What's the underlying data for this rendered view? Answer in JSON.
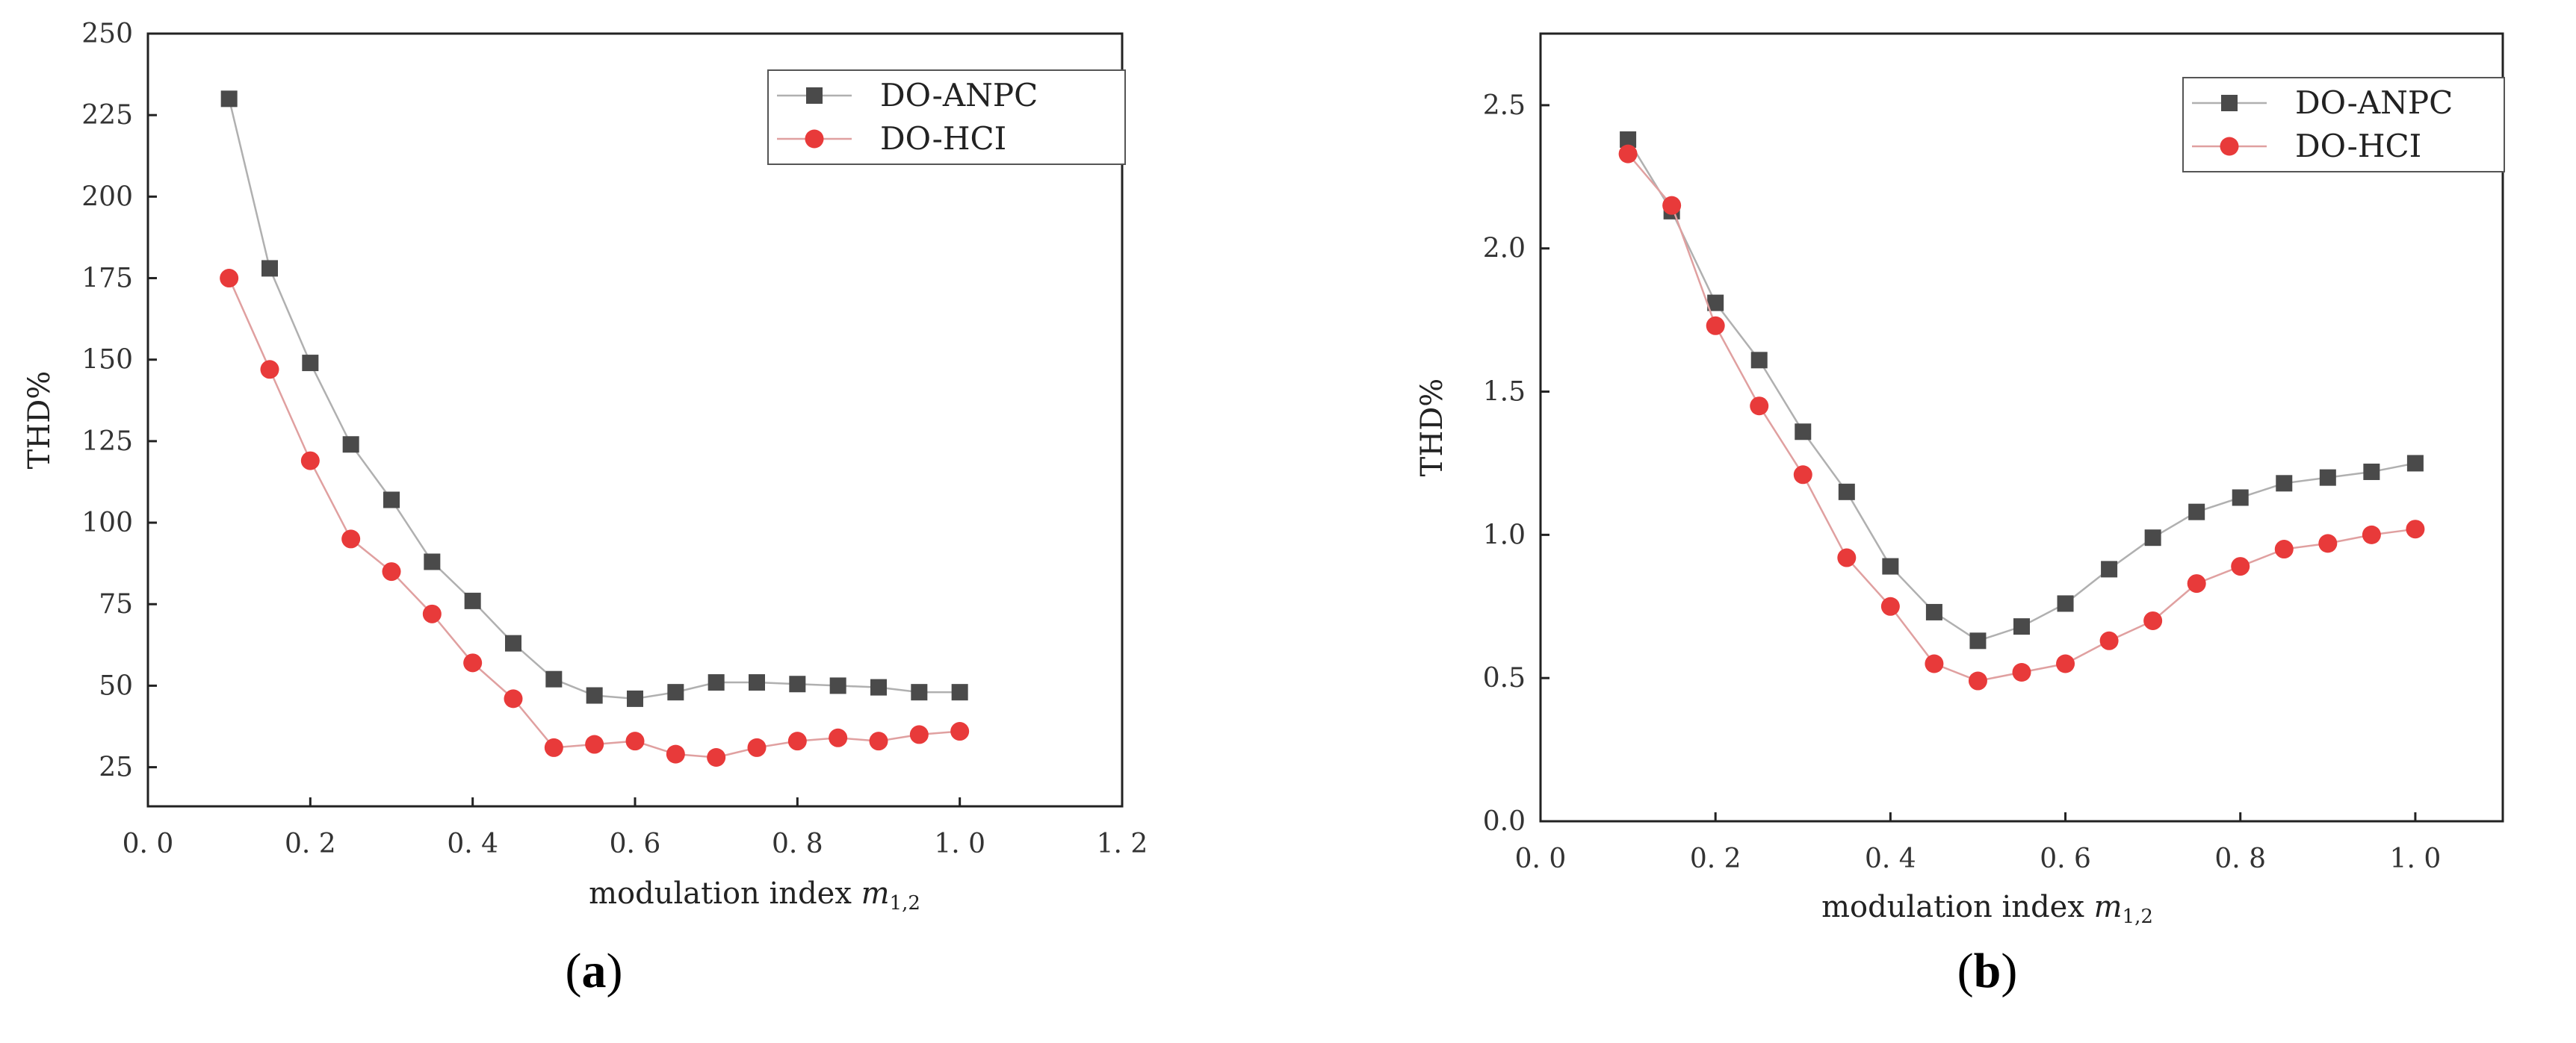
{
  "colors": {
    "series_a": "#4a4a4a",
    "series_b": "#e83a3a",
    "line_a": "#b0b0b0",
    "line_b": "#e0a0a0"
  },
  "chart_data": [
    {
      "id": "a",
      "type": "line",
      "caption_letter": "a",
      "xlabel": "modulation index ",
      "xlabel_italic": "m",
      "xlabel_sub": "1,2",
      "ylabel": "THD%",
      "xlim": [
        0.0,
        1.2
      ],
      "ylim": [
        13,
        250
      ],
      "x_ticks": [
        0.0,
        0.2,
        0.4,
        0.6,
        0.8,
        1.0,
        1.2
      ],
      "x_tick_labels": [
        "0. 0",
        "0. 2",
        "0. 4",
        "0. 6",
        "0. 8",
        "1. 0",
        "1. 2"
      ],
      "y_ticks": [
        25,
        50,
        75,
        100,
        125,
        150,
        175,
        200,
        225,
        250
      ],
      "y_tick_labels": [
        "25",
        "50",
        "75",
        "100",
        "125",
        "150",
        "175",
        "200",
        "225",
        "250"
      ],
      "legend_position": "top-right",
      "x": [
        0.1,
        0.15,
        0.2,
        0.25,
        0.3,
        0.35,
        0.4,
        0.45,
        0.5,
        0.55,
        0.6,
        0.65,
        0.7,
        0.75,
        0.8,
        0.85,
        0.9,
        0.95,
        1.0
      ],
      "series": [
        {
          "name": "DO-ANPC",
          "marker": "square",
          "values": [
            230,
            178,
            149,
            124,
            107,
            88,
            76,
            63,
            52,
            47,
            46,
            48,
            51,
            51,
            50.5,
            50,
            49.5,
            48,
            48
          ]
        },
        {
          "name": "DO-HCI",
          "marker": "circle",
          "values": [
            175,
            147,
            119,
            95,
            85,
            72,
            57,
            46,
            31,
            32,
            33,
            29,
            28,
            31,
            33,
            34,
            33,
            35,
            36
          ]
        }
      ]
    },
    {
      "id": "b",
      "type": "line",
      "caption_letter": "b",
      "xlabel": "modulation index ",
      "xlabel_italic": "m",
      "xlabel_sub": "1,2",
      "ylabel": "THD%",
      "xlim": [
        0.0,
        1.1
      ],
      "ylim": [
        0.0,
        2.75
      ],
      "x_ticks": [
        0.0,
        0.2,
        0.4,
        0.6,
        0.8,
        1.0
      ],
      "x_tick_labels": [
        "0. 0",
        "0. 2",
        "0. 4",
        "0. 6",
        "0. 8",
        "1. 0"
      ],
      "y_ticks": [
        0.0,
        0.5,
        1.0,
        1.5,
        2.0,
        2.5
      ],
      "y_tick_labels": [
        "0.0",
        "0.5",
        "1.0",
        "1.5",
        "2.0",
        "2.5"
      ],
      "legend_position": "top-right",
      "x": [
        0.1,
        0.15,
        0.2,
        0.25,
        0.3,
        0.35,
        0.4,
        0.45,
        0.5,
        0.55,
        0.6,
        0.65,
        0.7,
        0.75,
        0.8,
        0.85,
        0.9,
        0.95,
        1.0
      ],
      "series": [
        {
          "name": "DO-ANPC",
          "marker": "square",
          "values": [
            2.38,
            2.13,
            1.81,
            1.61,
            1.36,
            1.15,
            0.89,
            0.73,
            0.63,
            0.68,
            0.76,
            0.88,
            0.99,
            1.08,
            1.13,
            1.18,
            1.2,
            1.22,
            1.25
          ]
        },
        {
          "name": "DO-HCI",
          "marker": "circle",
          "values": [
            2.33,
            2.15,
            1.73,
            1.45,
            1.21,
            0.92,
            0.75,
            0.55,
            0.49,
            0.52,
            0.55,
            0.63,
            0.7,
            0.83,
            0.89,
            0.95,
            0.97,
            1.0,
            1.02
          ]
        }
      ]
    }
  ]
}
